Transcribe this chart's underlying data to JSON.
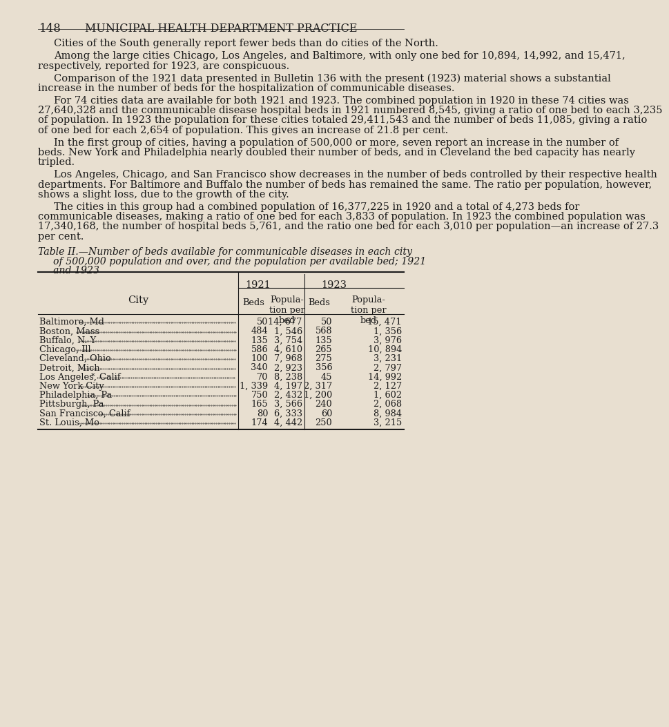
{
  "page_number": "148",
  "header": "MUNICIPAL HEALTH DEPARTMENT PRACTICE",
  "background_color": "#e8dfd0",
  "text_color": "#1a1a1a",
  "body_paragraphs": [
    "Cities of the South generally report fewer beds than do cities of the North.",
    "Among the large cities Chicago, Los Angeles, and Baltimore, with only one bed for 10,894, 14,992, and 15,471, respectively, reported for 1923, are conspicuous.",
    "Comparison of the 1921 data presented in Bulletin 136 with the present (1923) material shows a substantial increase in the number of beds for the hospitalization of communicable diseases.",
    "For 74 cities data are available for both 1921 and 1923.  The combined population in 1920 in these 74 cities was 27,640,328 and the communicable disease hospital beds in 1921 numbered 8,545, giving a ratio of one bed to each 3,235 of population.  In 1923 the population for these cities totaled 29,411,543 and the number of beds 11,085, giving a ratio of one bed for each 2,654 of population.  This gives an increase of 21.8 per cent.",
    "In the first group of cities, having a population of 500,000 or more, seven report an increase in the number of beds.  New York and Philadelphia nearly doubled their number of beds, and in Cleveland the bed capacity has nearly tripled.",
    "Los Angeles, Chicago, and San Francisco show decreases in the number of beds controlled by their respective health departments. For Baltimore and Buffalo the number of beds has remained the same.  The ratio per population, however, shows a slight loss, due to the growth of the city.",
    "The cities in this group had a combined population of 16,377,225 in 1920 and a total of 4,273 beds for communicable diseases, making a ratio of one bed for each 3,833 of population.  In 1923 the combined population was 17,340,168, the number of hospital beds 5,761, and the ratio one bed for each 3,010 per population—an increase of 27.3 per cent."
  ],
  "table_title_line1": "Table II.—Number of beds available for communicable diseases in each city",
  "table_title_line2": "of 500,000 population and over, and the population per available bed; 1921",
  "table_title_line3": "and 1923",
  "table_header_year1": "1921",
  "table_header_year2": "1923",
  "cities": [
    "Baltimore, Md",
    "Boston, Mass",
    "Buffalo, N. Y",
    "Chicago, Ill",
    "Cleveland, Ohio",
    "Detroit, Mich",
    "Los Angeles, Calif",
    "New York City",
    "Philadelphia, Pa",
    "Pittsburgh, Pa",
    "San Francisco, Calif",
    "St. Louis, Mo"
  ],
  "city_suffixes": [
    "......",
    "......",
    "......",
    "......",
    "......",
    "......",
    "......",
    "......",
    "......",
    "......",
    "......",
    "......"
  ],
  "pop_per_bed_1921": [
    "14, 677",
    "1, 546",
    "3, 754",
    "4, 610",
    "7, 968",
    "2, 923",
    "8, 238",
    "4, 197",
    "2, 432",
    "3, 566",
    "6, 333",
    "4, 442"
  ],
  "pop_per_bed_1923": [
    "15, 471",
    "1, 356",
    "3, 976",
    "10, 894",
    "3, 231",
    "2, 797",
    "14, 992",
    "2, 127",
    "1, 602",
    "2, 068",
    "8, 984",
    "3, 215"
  ],
  "beds_1921_display": [
    "50",
    "484",
    "135",
    "586",
    "100",
    "340",
    "70",
    "1, 339",
    "750",
    "165",
    "80",
    "174"
  ],
  "beds_1923_display": [
    "50",
    "568",
    "135",
    "265",
    "275",
    "356",
    "45",
    "2, 317",
    "1, 200",
    "240",
    "60",
    "250"
  ],
  "los_angeles_note": "*"
}
